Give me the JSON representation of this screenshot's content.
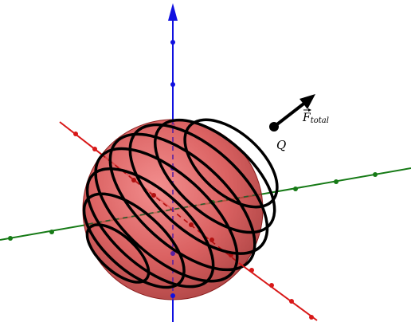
{
  "labels": {
    "charge": "Q",
    "force_main": "F",
    "force_sub": "total"
  },
  "colors": {
    "z_axis": "#1010e0",
    "x_axis": "#d81818",
    "y_axis": "#167a16",
    "sphere_fill": "#d94848",
    "coil": "#000000",
    "charge": "#000000",
    "vector": "#000000"
  },
  "coil": {
    "turns": 8
  }
}
